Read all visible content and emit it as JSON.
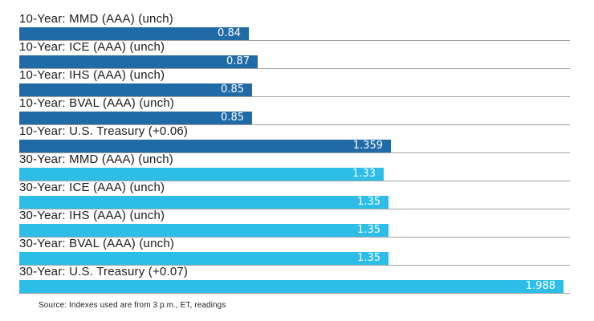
{
  "chart_data": {
    "type": "bar",
    "orientation": "horizontal",
    "title": "",
    "xlabel": "",
    "ylabel": "",
    "xlim": [
      0,
      2.012
    ],
    "grid": "row-baseline-separators",
    "legend": "none",
    "categories": [
      "10-Year: MMD (AAA) (unch)",
      "10-Year: ICE (AAA) (unch)",
      "10-Year: IHS (AAA) (unch)",
      "10-Year: BVAL (AAA) (unch)",
      "10-Year: U.S. Treasury (+0.06)",
      "30-Year: MMD (AAA) (unch)",
      "30-Year: ICE (AAA) (unch)",
      "30-Year: IHS (AAA) (unch)",
      "30-Year: BVAL (AAA) (unch)",
      "30-Year: U.S. Treasury (+0.07)"
    ],
    "values": [
      0.84,
      0.87,
      0.85,
      0.85,
      1.359,
      1.33,
      1.35,
      1.35,
      1.35,
      1.988
    ],
    "series": [
      {
        "name": "10-Year",
        "color": "#1f6ba8",
        "row_indexes": [
          0,
          1,
          2,
          3,
          4
        ]
      },
      {
        "name": "30-Year",
        "color": "#2cbde9",
        "row_indexes": [
          5,
          6,
          7,
          8,
          9
        ]
      }
    ]
  },
  "rows": [
    {
      "label": "10-Year: MMD (AAA) (unch)",
      "value": 0.84,
      "value_label": "0.84",
      "group": "10-year"
    },
    {
      "label": "10-Year: ICE (AAA) (unch)",
      "value": 0.87,
      "value_label": "0.87",
      "group": "10-year"
    },
    {
      "label": "10-Year: IHS (AAA) (unch)",
      "value": 0.85,
      "value_label": "0.85",
      "group": "10-year"
    },
    {
      "label": "10-Year: BVAL (AAA) (unch)",
      "value": 0.85,
      "value_label": "0.85",
      "group": "10-year"
    },
    {
      "label": "10-Year: U.S. Treasury (+0.06)",
      "value": 1.359,
      "value_label": "1.359",
      "group": "10-year"
    },
    {
      "label": "30-Year: MMD (AAA) (unch)",
      "value": 1.33,
      "value_label": "1.33",
      "group": "30-year"
    },
    {
      "label": "30-Year: ICE (AAA) (unch)",
      "value": 1.35,
      "value_label": "1.35",
      "group": "30-year"
    },
    {
      "label": "30-Year: IHS (AAA) (unch)",
      "value": 1.35,
      "value_label": "1.35",
      "group": "30-year"
    },
    {
      "label": "30-Year: BVAL (AAA) (unch)",
      "value": 1.35,
      "value_label": "1.35",
      "group": "30-year"
    },
    {
      "label": "30-Year: U.S. Treasury (+0.07)",
      "value": 1.988,
      "value_label": "1.988",
      "group": "30-year"
    }
  ],
  "footer": {
    "source_note": "Source: Indexes used are from 3 p.m., ET, readings"
  },
  "colors": {
    "bar_10_year": "#1f6ba8",
    "bar_30_year": "#2cbde9",
    "gridline": "#a0a0a0",
    "label_text": "#1b1b1b",
    "value_text": "#ffffff",
    "background": "#ffffff"
  }
}
